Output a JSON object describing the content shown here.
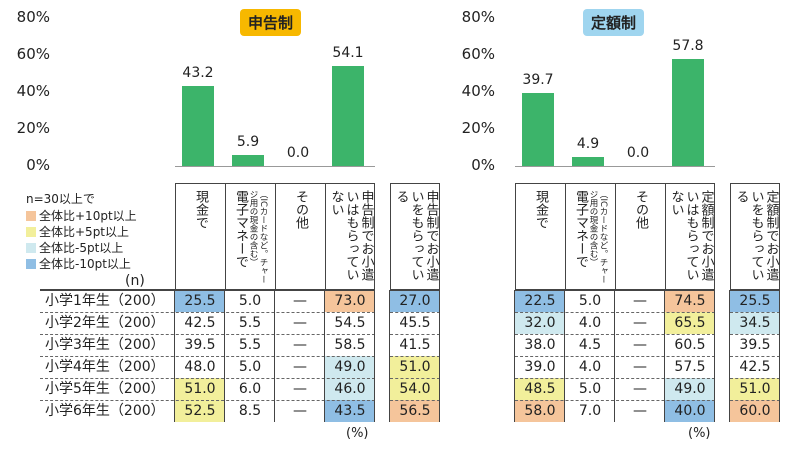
{
  "colors": {
    "bar": "#3cb46a",
    "o": "#f5c59b",
    "y": "#f2ef9b",
    "lb": "#cfe9ef",
    "b": "#8fbee4",
    "badge_left": "#f7b800",
    "badge_right": "#9fd5ef"
  },
  "legend": {
    "title": "n=30以上で",
    "items": [
      {
        "code": "o",
        "label": "全体比+10pt以上"
      },
      {
        "code": "y",
        "label": "全体比+5pt以上"
      },
      {
        "code": "lb",
        "label": "全体比-5pt以上"
      },
      {
        "code": "b",
        "label": "全体比-10pt以上"
      }
    ],
    "n_label": "(n)"
  },
  "unit_label": "(%)",
  "rows": [
    "小学1年生（200）",
    "小学2年生（200）",
    "小学3年生（200）",
    "小学4年生（200）",
    "小学5年生（200）",
    "小学6年生（200）"
  ],
  "chart_data": [
    {
      "type": "bar",
      "title": "申告制",
      "yticks": [
        "80%",
        "60%",
        "40%",
        "20%",
        "0%"
      ],
      "ylim": [
        0,
        80
      ],
      "categories": [
        "現金で",
        "電子マネーで",
        "その他",
        "申告制でお小遣いはもらっていない"
      ],
      "values": [
        43.2,
        5.9,
        0.0,
        54.1
      ],
      "value_labels": [
        "43.2",
        "5.9",
        "0.0",
        "54.1"
      ],
      "table": {
        "headers": [
          {
            "main": "現金で"
          },
          {
            "main": "電子マネーで",
            "sub": "（ICカードなど。チャージ用の現金の含む）"
          },
          {
            "main": "その他"
          },
          {
            "main": "申告制でお小遣いはもらっていない"
          },
          {
            "main": "申告制でお小遣いをもらっている"
          }
        ],
        "cells": [
          [
            [
              "25.5",
              "b"
            ],
            [
              "5.0",
              ""
            ],
            [
              "—",
              ""
            ],
            [
              "73.0",
              "o"
            ],
            [
              "27.0",
              "b"
            ]
          ],
          [
            [
              "42.5",
              ""
            ],
            [
              "5.5",
              ""
            ],
            [
              "—",
              ""
            ],
            [
              "54.5",
              ""
            ],
            [
              "45.5",
              ""
            ]
          ],
          [
            [
              "39.5",
              ""
            ],
            [
              "5.5",
              ""
            ],
            [
              "—",
              ""
            ],
            [
              "58.5",
              ""
            ],
            [
              "41.5",
              ""
            ]
          ],
          [
            [
              "48.0",
              ""
            ],
            [
              "5.0",
              ""
            ],
            [
              "—",
              ""
            ],
            [
              "49.0",
              "lb"
            ],
            [
              "51.0",
              "y"
            ]
          ],
          [
            [
              "51.0",
              "y"
            ],
            [
              "6.0",
              ""
            ],
            [
              "—",
              ""
            ],
            [
              "46.0",
              "lb"
            ],
            [
              "54.0",
              "y"
            ]
          ],
          [
            [
              "52.5",
              "y"
            ],
            [
              "8.5",
              ""
            ],
            [
              "—",
              ""
            ],
            [
              "43.5",
              "b"
            ],
            [
              "56.5",
              "o"
            ]
          ]
        ]
      }
    },
    {
      "type": "bar",
      "title": "定額制",
      "yticks": [
        "80%",
        "60%",
        "40%",
        "20%",
        "0%"
      ],
      "ylim": [
        0,
        80
      ],
      "categories": [
        "現金で",
        "電子マネーで",
        "その他",
        "定額制でお小遣いはもらっていない"
      ],
      "values": [
        39.7,
        4.9,
        0.0,
        57.8
      ],
      "value_labels": [
        "39.7",
        "4.9",
        "0.0",
        "57.8"
      ],
      "table": {
        "headers": [
          {
            "main": "現金で"
          },
          {
            "main": "電子マネーで",
            "sub": "（ICカードなど。チャージ用の現金の含む）"
          },
          {
            "main": "その他"
          },
          {
            "main": "定額制でお小遣いはもらっていない"
          },
          {
            "main": "定額制でお小遣いをもらっている"
          }
        ],
        "cells": [
          [
            [
              "22.5",
              "b"
            ],
            [
              "5.0",
              ""
            ],
            [
              "—",
              ""
            ],
            [
              "74.5",
              "o"
            ],
            [
              "25.5",
              "b"
            ]
          ],
          [
            [
              "32.0",
              "lb"
            ],
            [
              "4.0",
              ""
            ],
            [
              "—",
              ""
            ],
            [
              "65.5",
              "y"
            ],
            [
              "34.5",
              "lb"
            ]
          ],
          [
            [
              "38.0",
              ""
            ],
            [
              "4.5",
              ""
            ],
            [
              "—",
              ""
            ],
            [
              "60.5",
              ""
            ],
            [
              "39.5",
              ""
            ]
          ],
          [
            [
              "39.0",
              ""
            ],
            [
              "4.0",
              ""
            ],
            [
              "—",
              ""
            ],
            [
              "57.5",
              ""
            ],
            [
              "42.5",
              ""
            ]
          ],
          [
            [
              "48.5",
              "y"
            ],
            [
              "5.0",
              ""
            ],
            [
              "—",
              ""
            ],
            [
              "49.0",
              "lb"
            ],
            [
              "51.0",
              "y"
            ]
          ],
          [
            [
              "58.0",
              "o"
            ],
            [
              "7.0",
              ""
            ],
            [
              "—",
              ""
            ],
            [
              "40.0",
              "b"
            ],
            [
              "60.0",
              "o"
            ]
          ]
        ]
      }
    }
  ]
}
